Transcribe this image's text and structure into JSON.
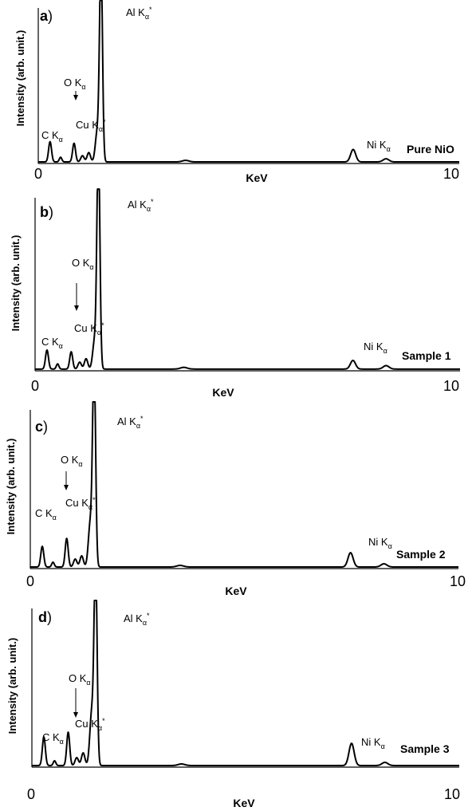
{
  "chart_data": [
    {
      "type": "line",
      "panel_label": "a",
      "sample": "Pure NiO",
      "xlabel": "KeV",
      "ylabel": "Intensity (arb. unit.)",
      "xlim": [
        0,
        10
      ],
      "xticks": [
        "0",
        "10"
      ],
      "ylim": [
        0,
        100
      ],
      "grid": false,
      "baseline": 1,
      "peaks": [
        {
          "x": 0.28,
          "height": 13,
          "width": 0.035
        },
        {
          "x": 0.53,
          "height": 3,
          "width": 0.03
        },
        {
          "x": 0.85,
          "height": 12,
          "width": 0.035
        },
        {
          "x": 1.05,
          "height": 4,
          "width": 0.04
        },
        {
          "x": 1.2,
          "height": 6,
          "width": 0.04
        },
        {
          "x": 1.4,
          "height": 19,
          "width": 0.045
        },
        {
          "x": 1.49,
          "height": 130,
          "width": 0.035
        },
        {
          "x": 3.5,
          "height": 1,
          "width": 0.08
        },
        {
          "x": 7.48,
          "height": 8,
          "width": 0.06
        },
        {
          "x": 8.26,
          "height": 2,
          "width": 0.07
        }
      ],
      "annotations": [
        {
          "id": "al",
          "text": "Al K",
          "sub": "α",
          "sup": "*"
        },
        {
          "id": "o",
          "text": "O K",
          "sub": "α"
        },
        {
          "id": "c",
          "text": "C K",
          "sub": "α"
        },
        {
          "id": "cu",
          "text": "Cu K",
          "sub": "α",
          "sup": "*"
        },
        {
          "id": "ni",
          "text": "Ni K",
          "sub": "α"
        }
      ]
    },
    {
      "type": "line",
      "panel_label": "b",
      "sample": "Sample 1",
      "xlabel": "KeV",
      "ylabel": "Intensity (arb. unit.)",
      "xlim": [
        0,
        10
      ],
      "xticks": [
        "0",
        "10"
      ],
      "ylim": [
        0,
        100
      ],
      "grid": false,
      "baseline": 1,
      "peaks": [
        {
          "x": 0.28,
          "height": 11,
          "width": 0.035
        },
        {
          "x": 0.53,
          "height": 3,
          "width": 0.03
        },
        {
          "x": 0.85,
          "height": 10,
          "width": 0.035
        },
        {
          "x": 1.05,
          "height": 4,
          "width": 0.04
        },
        {
          "x": 1.2,
          "height": 6,
          "width": 0.04
        },
        {
          "x": 1.4,
          "height": 16,
          "width": 0.045
        },
        {
          "x": 1.49,
          "height": 130,
          "width": 0.035
        },
        {
          "x": 3.5,
          "height": 1,
          "width": 0.08
        },
        {
          "x": 7.48,
          "height": 5,
          "width": 0.06
        },
        {
          "x": 8.26,
          "height": 2,
          "width": 0.07
        }
      ],
      "annotations": [
        {
          "id": "al",
          "text": "Al K",
          "sub": "α",
          "sup": "*"
        },
        {
          "id": "o",
          "text": "O K",
          "sub": "α"
        },
        {
          "id": "c",
          "text": "C K",
          "sub": "α"
        },
        {
          "id": "cu",
          "text": "Cu K",
          "sub": "α",
          "sup": "*"
        },
        {
          "id": "ni",
          "text": "Ni K",
          "sub": "α"
        }
      ]
    },
    {
      "type": "line",
      "panel_label": "c",
      "sample": "Sample 2",
      "xlabel": "KeV",
      "ylabel": "Intensity (arb. unit.)",
      "xlim": [
        0,
        10
      ],
      "xticks": [
        "0",
        "10"
      ],
      "ylim": [
        0,
        100
      ],
      "grid": false,
      "baseline": 1,
      "peaks": [
        {
          "x": 0.28,
          "height": 13,
          "width": 0.035
        },
        {
          "x": 0.53,
          "height": 3,
          "width": 0.03
        },
        {
          "x": 0.85,
          "height": 18,
          "width": 0.035
        },
        {
          "x": 1.05,
          "height": 5,
          "width": 0.04
        },
        {
          "x": 1.2,
          "height": 7,
          "width": 0.04
        },
        {
          "x": 1.4,
          "height": 27,
          "width": 0.045
        },
        {
          "x": 1.49,
          "height": 130,
          "width": 0.035
        },
        {
          "x": 3.5,
          "height": 1,
          "width": 0.08
        },
        {
          "x": 7.48,
          "height": 9,
          "width": 0.06
        },
        {
          "x": 8.26,
          "height": 2,
          "width": 0.07
        }
      ],
      "annotations": [
        {
          "id": "al",
          "text": "Al K",
          "sub": "α",
          "sup": "*"
        },
        {
          "id": "o",
          "text": "O K",
          "sub": "α"
        },
        {
          "id": "c",
          "text": "C K",
          "sub": "α"
        },
        {
          "id": "cu",
          "text": "Cu K",
          "sub": "α",
          "sup": "*"
        },
        {
          "id": "ni",
          "text": "Ni K",
          "sub": "α"
        }
      ]
    },
    {
      "type": "line",
      "panel_label": "d",
      "sample": "Sample 3",
      "xlabel": "KeV",
      "ylabel": "Intensity (arb. unit.)",
      "xlim": [
        0,
        10
      ],
      "xticks": [
        "0",
        "10"
      ],
      "ylim": [
        0,
        100
      ],
      "grid": false,
      "baseline": 1,
      "peaks": [
        {
          "x": 0.28,
          "height": 18,
          "width": 0.035
        },
        {
          "x": 0.53,
          "height": 3,
          "width": 0.03
        },
        {
          "x": 0.85,
          "height": 21,
          "width": 0.035
        },
        {
          "x": 1.05,
          "height": 5,
          "width": 0.04
        },
        {
          "x": 1.2,
          "height": 8,
          "width": 0.04
        },
        {
          "x": 1.4,
          "height": 33,
          "width": 0.045
        },
        {
          "x": 1.49,
          "height": 130,
          "width": 0.035
        },
        {
          "x": 3.5,
          "height": 1,
          "width": 0.08
        },
        {
          "x": 7.48,
          "height": 14,
          "width": 0.06
        },
        {
          "x": 8.26,
          "height": 2,
          "width": 0.07
        }
      ],
      "annotations": [
        {
          "id": "al",
          "text": "Al K",
          "sub": "α",
          "sup": "*"
        },
        {
          "id": "o",
          "text": "O K",
          "sub": "α"
        },
        {
          "id": "c",
          "text": "C K",
          "sub": "α"
        },
        {
          "id": "cu",
          "text": "Cu K",
          "sub": "α",
          "sup": "*"
        },
        {
          "id": "ni",
          "text": "Ni K",
          "sub": "α"
        }
      ]
    }
  ]
}
